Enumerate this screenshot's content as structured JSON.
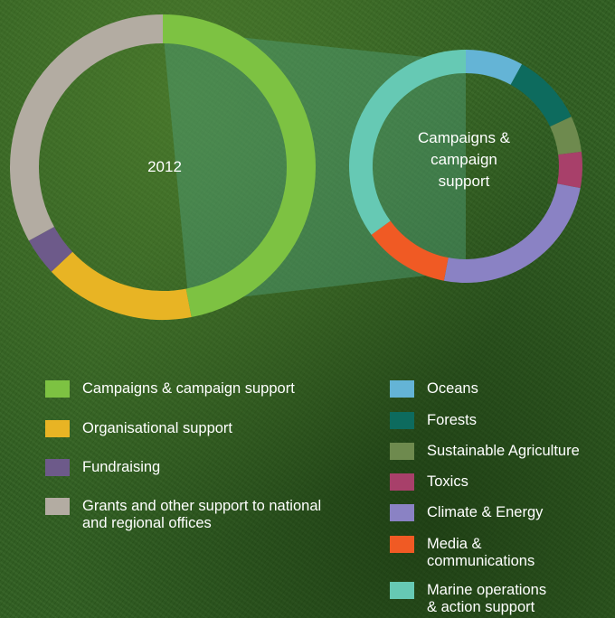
{
  "chart_data": [
    {
      "type": "pie",
      "variant": "donut",
      "center_label": "2012",
      "categories": [
        "Campaigns & campaign support",
        "Organisational support",
        "Fundraising",
        "Grants and other support to national and regional offices"
      ],
      "values": [
        47,
        16,
        4,
        33
      ],
      "colors": [
        "#7dc242",
        "#e8b424",
        "#6d5a8a",
        "#b3aca2"
      ]
    },
    {
      "type": "pie",
      "variant": "donut",
      "center_label": "Campaigns &\ncampaign\nsupport",
      "categories": [
        "Oceans",
        "Forests",
        "Sustainable Agriculture",
        "Toxics",
        "Climate & Energy",
        "Media &\ncommunications",
        "Marine operations\n& action support"
      ],
      "values": [
        8,
        10,
        5,
        5,
        25,
        12,
        35
      ],
      "colors": [
        "#64b4d6",
        "#0d6b5e",
        "#6e8a4e",
        "#a8406a",
        "#8a82c4",
        "#f05a24",
        "#66c9b4"
      ]
    }
  ]
}
